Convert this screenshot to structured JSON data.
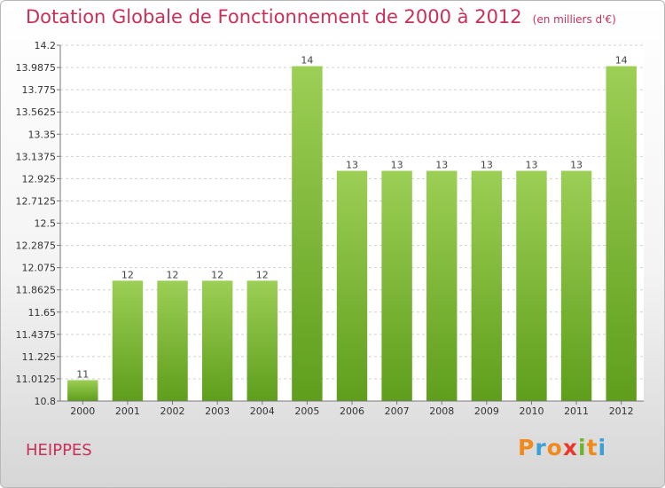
{
  "header": {
    "title": "Dotation Globale de Fonctionnement de 2000 à 2012",
    "unit": "(en milliers d'€)"
  },
  "footer": {
    "commune": "HEIPPES",
    "logo_letters": [
      "P",
      "r",
      "o",
      "x",
      "i",
      "t",
      "i"
    ],
    "logo_colors": [
      "#f08a1c",
      "#3b9fd8",
      "#f08a1c",
      "#e8392b",
      "#6fb52c",
      "#f08a1c",
      "#3b9fd8"
    ]
  },
  "chart_data": {
    "type": "bar",
    "title": "Dotation Globale de Fonctionnement de 2000 à 2012",
    "categories": [
      "2000",
      "2001",
      "2002",
      "2003",
      "2004",
      "2005",
      "2006",
      "2007",
      "2008",
      "2009",
      "2010",
      "2011",
      "2012"
    ],
    "values": [
      11,
      12,
      12,
      12,
      12,
      14,
      13,
      13,
      13,
      13,
      13,
      13,
      14
    ],
    "bar_heights": [
      11.0,
      11.95,
      11.95,
      11.95,
      11.95,
      14.0,
      13.0,
      13.0,
      13.0,
      13.0,
      13.0,
      13.0,
      14.0
    ],
    "value_labels": [
      "11",
      "12",
      "12",
      "12",
      "12",
      "14",
      "13",
      "13",
      "13",
      "13",
      "13",
      "13",
      "14"
    ],
    "yticks": [
      "10.8",
      "11.0125",
      "11.225",
      "11.4375",
      "11.65",
      "11.8625",
      "12.075",
      "12.2875",
      "12.5",
      "12.7125",
      "12.925",
      "13.1375",
      "13.35",
      "13.5625",
      "13.775",
      "13.9875",
      "14.2"
    ],
    "ylim": [
      10.8,
      14.2
    ],
    "grid": true,
    "bar_color": "#7ab83a",
    "xlabel": "",
    "ylabel": ""
  }
}
